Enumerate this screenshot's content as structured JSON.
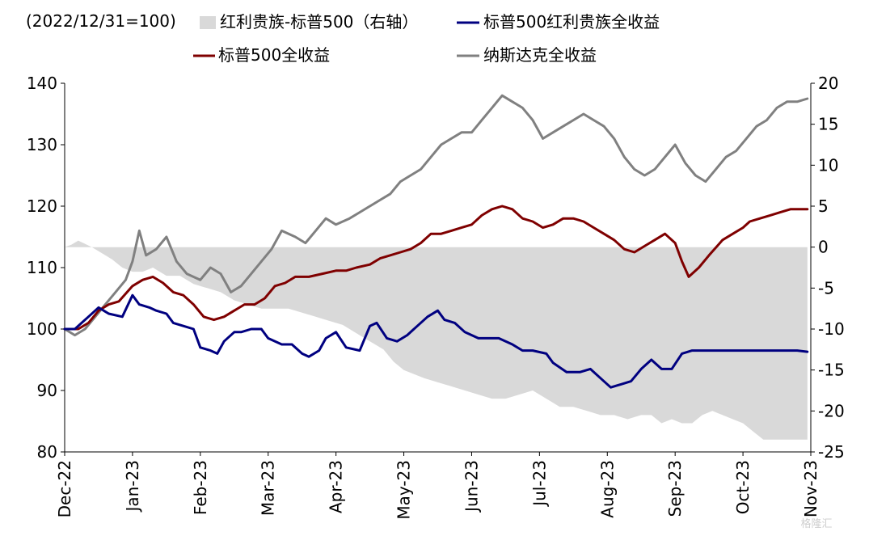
{
  "chart_data": {
    "type": "line",
    "note": "(2022/12/31=100)",
    "x_ticks": [
      "Dec-22",
      "Jan-23",
      "Feb-23",
      "Mar-23",
      "Apr-23",
      "May-23",
      "Jun-23",
      "Jul-23",
      "Aug-23",
      "Sep-23",
      "Oct-23",
      "Nov-23"
    ],
    "x_range": [
      0,
      11
    ],
    "y_left": {
      "min": 80,
      "max": 140,
      "ticks": [
        80,
        90,
        100,
        110,
        120,
        130,
        140
      ]
    },
    "y_right": {
      "min": -25,
      "max": 20,
      "ticks": [
        20,
        15,
        10,
        5,
        0,
        -5,
        -10,
        -15,
        -20,
        -25
      ]
    },
    "legend": [
      {
        "key": "spread",
        "label": "红利贵族-标普500（右轴）"
      },
      {
        "key": "aristocrats",
        "label": "标普500红利贵族全收益"
      },
      {
        "key": "sp500",
        "label": "标普500全收益"
      },
      {
        "key": "nasdaq",
        "label": "纳斯达克全收益"
      }
    ],
    "colors": {
      "spread": "#d9d9d9",
      "aristocrats": "#000080",
      "sp500": "#7f0000",
      "nasdaq": "#808080",
      "right_axis_negative": "#c00000"
    },
    "series": [
      {
        "key": "aristocrats",
        "name": "标普500红利贵族全收益",
        "axis": "left",
        "x": [
          0,
          0.15,
          0.25,
          0.35,
          0.5,
          0.65,
          0.85,
          1.0,
          1.1,
          1.25,
          1.35,
          1.5,
          1.6,
          1.75,
          1.9,
          2.0,
          2.15,
          2.25,
          2.35,
          2.5,
          2.6,
          2.75,
          2.9,
          3.0,
          3.2,
          3.35,
          3.5,
          3.6,
          3.75,
          3.85,
          4.0,
          4.15,
          4.35,
          4.5,
          4.6,
          4.75,
          4.9,
          5.05,
          5.2,
          5.35,
          5.5,
          5.6,
          5.75,
          5.9,
          6.1,
          6.25,
          6.4,
          6.6,
          6.75,
          6.9,
          7.1,
          7.2,
          7.4,
          7.6,
          7.75,
          7.9,
          8.05,
          8.2,
          8.35,
          8.5,
          8.65,
          8.8,
          8.95,
          9.1,
          9.25,
          9.4,
          9.55,
          9.7,
          9.8,
          9.9,
          10.05,
          10.2,
          10.35,
          10.5,
          10.65,
          10.8,
          10.95
        ],
        "values": [
          100,
          100,
          101,
          102,
          103.5,
          102.5,
          102,
          105.5,
          104,
          103.5,
          103,
          102.5,
          101,
          100.5,
          100,
          97,
          96.5,
          96,
          98,
          99.5,
          99.5,
          100,
          100,
          98.5,
          97.5,
          97.5,
          96,
          95.5,
          96.5,
          98.5,
          99.5,
          97,
          96.5,
          100.5,
          101,
          98.5,
          98,
          99,
          100.5,
          102,
          103,
          101.5,
          101,
          99.5,
          98.5,
          98.5,
          98.5,
          97.5,
          96.5,
          96.5,
          96,
          94.5,
          93,
          93,
          93.5,
          92,
          90.5,
          91,
          91.5,
          93.5,
          95,
          93.5,
          93.5,
          96,
          96.5,
          96.5,
          96.5,
          96.5,
          96.5,
          96.5,
          96.5,
          96.5,
          96.5,
          96.5,
          96.5,
          96.5,
          96.3
        ]
      },
      {
        "key": "sp500",
        "name": "标普500全收益",
        "axis": "left",
        "x": [
          0,
          0.2,
          0.35,
          0.5,
          0.65,
          0.8,
          1.0,
          1.15,
          1.3,
          1.45,
          1.6,
          1.75,
          1.9,
          2.05,
          2.2,
          2.35,
          2.5,
          2.65,
          2.8,
          2.95,
          3.1,
          3.25,
          3.4,
          3.6,
          3.8,
          4.0,
          4.15,
          4.3,
          4.5,
          4.65,
          4.8,
          4.95,
          5.1,
          5.25,
          5.4,
          5.55,
          5.7,
          5.85,
          6.0,
          6.15,
          6.3,
          6.45,
          6.6,
          6.75,
          6.9,
          7.05,
          7.2,
          7.35,
          7.5,
          7.65,
          7.8,
          7.95,
          8.1,
          8.25,
          8.4,
          8.55,
          8.7,
          8.85,
          9.0,
          9.1,
          9.2,
          9.35,
          9.5,
          9.7,
          9.85,
          10.0,
          10.1,
          10.25,
          10.4,
          10.55,
          10.7,
          10.85,
          10.95
        ],
        "values": [
          100,
          100,
          101,
          103,
          104,
          104.5,
          107,
          108,
          108.5,
          107.5,
          106,
          105.5,
          104,
          102,
          101.5,
          102,
          103,
          104,
          104,
          105,
          107,
          107.5,
          108.5,
          108.5,
          109,
          109.5,
          109.5,
          110,
          110.5,
          111.5,
          112,
          112.5,
          113,
          114,
          115.5,
          115.5,
          116,
          116.5,
          117,
          118.5,
          119.5,
          120,
          119.5,
          118,
          117.5,
          116.5,
          117,
          118,
          118,
          117.5,
          116.5,
          115.5,
          114.5,
          113,
          112.5,
          113.5,
          114.5,
          115.5,
          114,
          111,
          108.5,
          110,
          112,
          114.5,
          115.5,
          116.5,
          117.5,
          118,
          118.5,
          119,
          119.5,
          119.5,
          119.5
        ]
      },
      {
        "key": "nasdaq",
        "name": "纳斯达克全收益",
        "axis": "left",
        "x": [
          0,
          0.15,
          0.3,
          0.45,
          0.6,
          0.75,
          0.9,
          1.0,
          1.1,
          1.2,
          1.35,
          1.5,
          1.65,
          1.8,
          2.0,
          2.15,
          2.3,
          2.45,
          2.6,
          2.75,
          2.9,
          3.05,
          3.2,
          3.4,
          3.55,
          3.7,
          3.85,
          4.0,
          4.2,
          4.35,
          4.5,
          4.65,
          4.8,
          4.95,
          5.1,
          5.25,
          5.4,
          5.55,
          5.7,
          5.85,
          6.0,
          6.15,
          6.3,
          6.45,
          6.6,
          6.75,
          6.9,
          7.05,
          7.2,
          7.35,
          7.5,
          7.65,
          7.8,
          7.95,
          8.1,
          8.25,
          8.4,
          8.55,
          8.7,
          8.85,
          9.0,
          9.15,
          9.3,
          9.45,
          9.6,
          9.75,
          9.9,
          10.05,
          10.2,
          10.35,
          10.5,
          10.65,
          10.8,
          10.95
        ],
        "values": [
          100,
          99,
          100,
          102,
          104,
          106,
          108,
          111,
          116,
          112,
          113,
          115,
          111,
          109,
          108,
          110,
          109,
          106,
          107,
          109,
          111,
          113,
          116,
          115,
          114,
          116,
          118,
          117,
          118,
          119,
          120,
          121,
          122,
          124,
          125,
          126,
          128,
          130,
          131,
          132,
          132,
          134,
          136,
          138,
          137,
          136,
          134,
          131,
          132,
          133,
          134,
          135,
          134,
          133,
          131,
          128,
          126,
          125,
          126,
          128,
          130,
          127,
          125,
          124,
          126,
          128,
          129,
          131,
          133,
          134,
          136,
          137,
          137,
          137.5
        ]
      },
      {
        "key": "spread",
        "name": "红利贵族-标普500（右轴）",
        "axis": "right",
        "kind": "area",
        "x": [
          0,
          0.1,
          0.2,
          0.3,
          0.4,
          0.5,
          0.6,
          0.7,
          0.85,
          1.0,
          1.15,
          1.3,
          1.5,
          1.7,
          1.9,
          2.1,
          2.3,
          2.5,
          2.7,
          2.9,
          3.1,
          3.3,
          3.5,
          3.7,
          3.9,
          4.1,
          4.3,
          4.5,
          4.7,
          4.85,
          5.0,
          5.15,
          5.3,
          5.5,
          5.7,
          5.9,
          6.1,
          6.3,
          6.5,
          6.7,
          6.9,
          7.1,
          7.3,
          7.5,
          7.7,
          7.9,
          8.1,
          8.3,
          8.5,
          8.65,
          8.8,
          8.95,
          9.1,
          9.25,
          9.4,
          9.55,
          9.7,
          9.85,
          10.0,
          10.15,
          10.3,
          10.45,
          10.6,
          10.75,
          10.95
        ],
        "values": [
          0,
          0.3,
          0.8,
          0.4,
          0,
          -0.5,
          -1,
          -1.5,
          -2.5,
          -3,
          -3,
          -2.5,
          -3.5,
          -3.5,
          -4.5,
          -5,
          -5.5,
          -6.5,
          -7,
          -7.5,
          -7.5,
          -7.5,
          -8,
          -8.5,
          -9,
          -9.5,
          -10.5,
          -11.5,
          -12.5,
          -14,
          -15,
          -15.5,
          -16,
          -16.5,
          -17,
          -17.5,
          -18,
          -18.5,
          -18.5,
          -18,
          -17.5,
          -18.5,
          -19.5,
          -19.5,
          -20,
          -20.5,
          -20.5,
          -21,
          -20.5,
          -20.5,
          -21.5,
          -21,
          -21.5,
          -21.5,
          -20.5,
          -20,
          -20.5,
          -21,
          -21.5,
          -22.5,
          -23.5,
          -23.5,
          -23.5,
          -23.5,
          -23.5
        ]
      }
    ]
  },
  "watermark": "格隆汇"
}
